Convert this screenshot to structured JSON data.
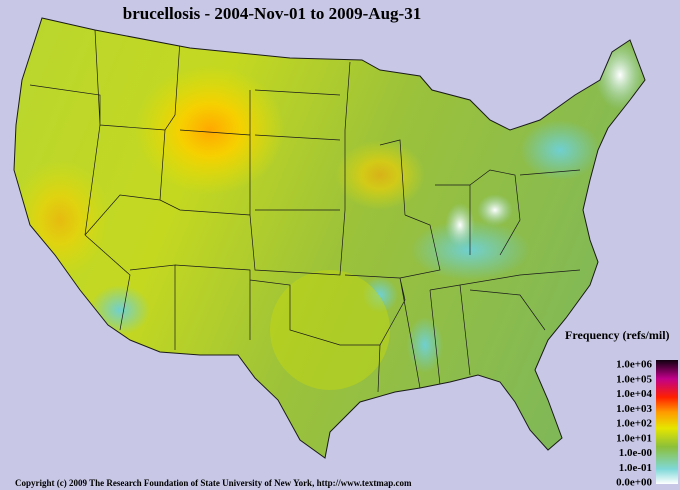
{
  "title": "brucellosis - 2004-Nov-01 to 2009-Aug-31",
  "legend": {
    "title": "Frequency (refs/mil)",
    "labels": [
      "1.0e+06",
      "1.0e+05",
      "1.0e+04",
      "1.0e+03",
      "1.0e+02",
      "1.0e+01",
      "1.0e-00",
      "1.0e-01",
      "0.0e+00"
    ]
  },
  "copyright": "Copyright (c) 2009 The Research Foundation of State University of New York, http://www.textmap.com"
}
